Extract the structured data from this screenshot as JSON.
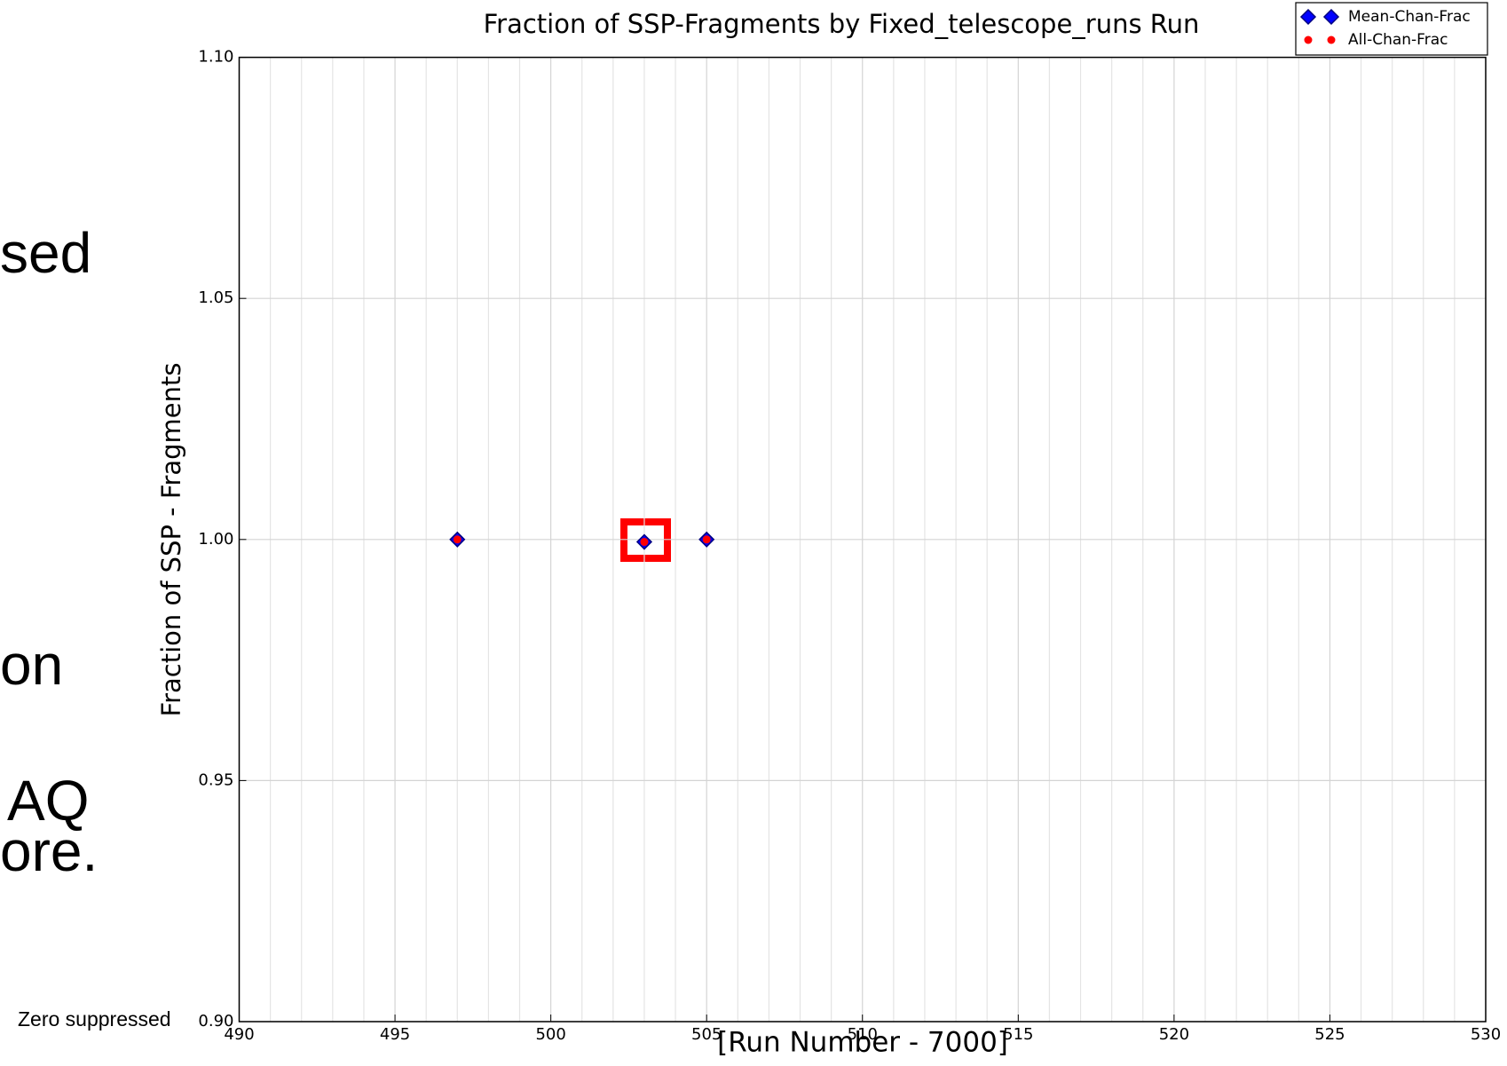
{
  "slide_text": {
    "fragments": [
      "sed",
      "on",
      "AQ",
      "ore."
    ],
    "note": "Zero suppressed"
  },
  "chart_data": {
    "type": "scatter",
    "title": "Fraction of SSP-Fragments by Fixed_telescope_runs Run",
    "x_label": "[Run Number - 7000]",
    "y_label": "Fraction of SSP - Fragments",
    "xlim": [
      490,
      530
    ],
    "xticks": [
      490,
      495,
      500,
      505,
      510,
      515,
      520,
      525,
      530
    ],
    "ylim": [
      0.9,
      1.1
    ],
    "yticks": [
      {
        "value": 0.9,
        "label": "0.90"
      },
      {
        "value": 0.95,
        "label": "0.95"
      },
      {
        "value": 1.0,
        "label": "1.00"
      },
      {
        "value": 1.05,
        "label": "1.05"
      },
      {
        "value": 1.1,
        "label": "1.10"
      }
    ],
    "grid": true,
    "legend": "upper right",
    "series": [
      {
        "name": "Mean-Chan-Frac",
        "color": "#0000ff",
        "marker": "diamond",
        "x": [
          497,
          503,
          505
        ],
        "values": [
          1.0,
          0.9995,
          1.0
        ]
      },
      {
        "name": "All-Chan-Frac",
        "color": "#ff0000",
        "marker": "circle",
        "x": [
          497,
          503,
          505
        ],
        "values": [
          1.0,
          0.9995,
          1.0
        ]
      }
    ]
  }
}
